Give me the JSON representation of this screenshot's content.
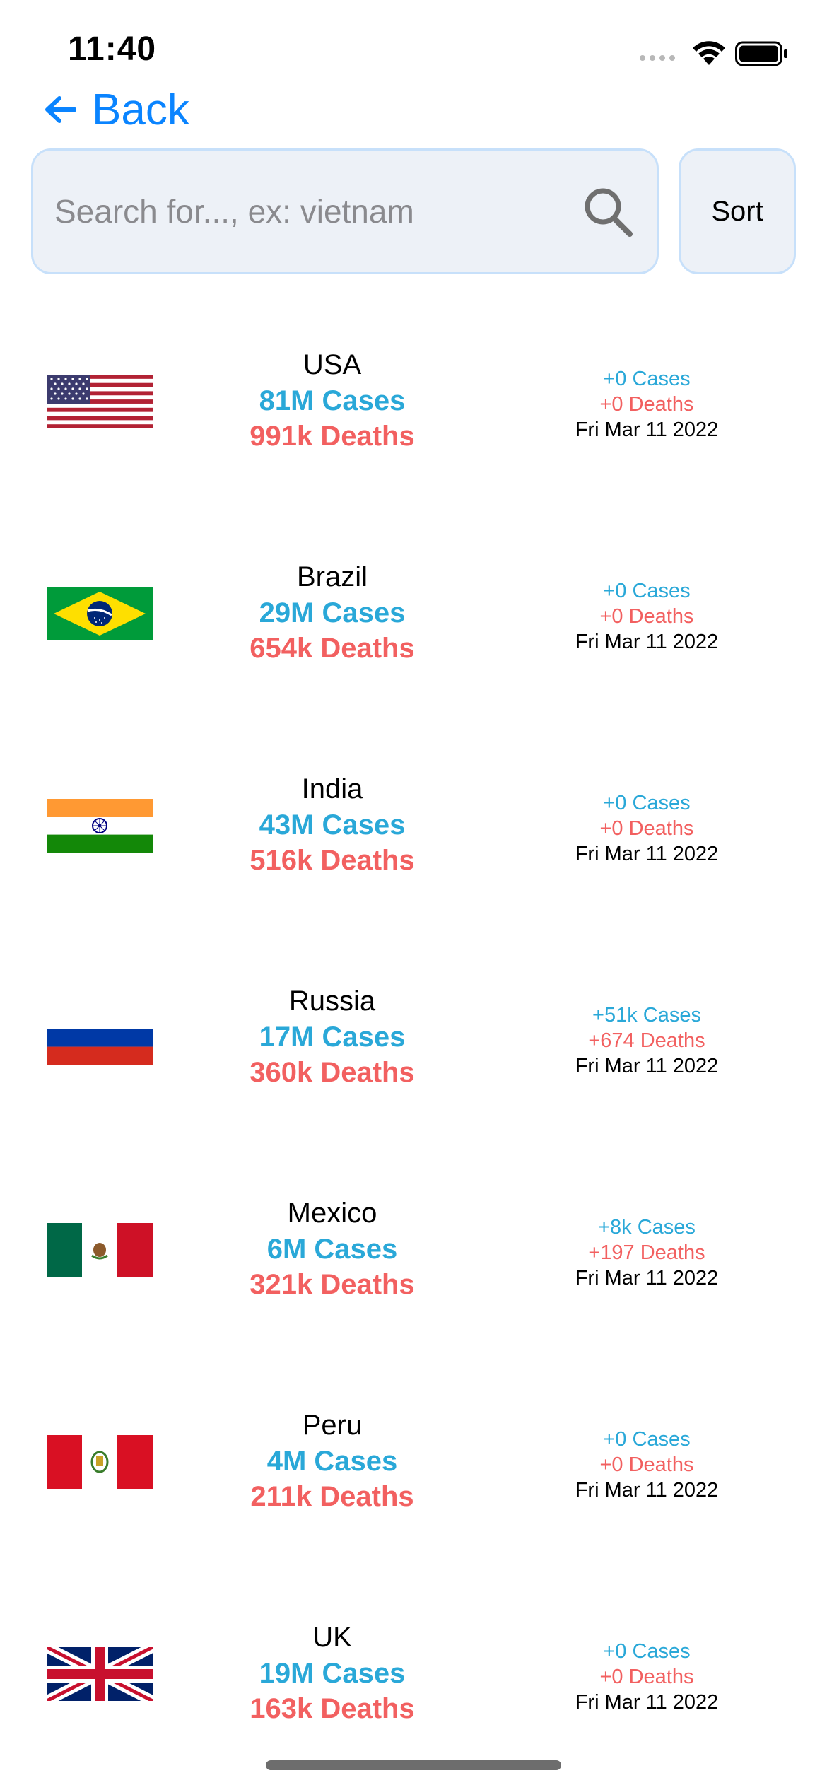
{
  "status_bar": {
    "time": "11:40"
  },
  "nav": {
    "back_label": "Back"
  },
  "search": {
    "placeholder": "Search for..., ex: vietnam",
    "value": ""
  },
  "sort_label": "Sort",
  "colors": {
    "accent": "#0a84ff",
    "cases": "#2aa8d8",
    "deaths": "#f26060",
    "field_bg": "#edf1f7",
    "field_border": "#c7e0fa"
  },
  "countries": [
    {
      "name": "USA",
      "cases": "81M Cases",
      "deaths": "991k Deaths",
      "new_cases": "+0 Cases",
      "new_deaths": "+0 Deaths",
      "date": "Fri Mar 11 2022",
      "flag": "usa-flag"
    },
    {
      "name": "Brazil",
      "cases": "29M Cases",
      "deaths": "654k Deaths",
      "new_cases": "+0 Cases",
      "new_deaths": "+0 Deaths",
      "date": "Fri Mar 11 2022",
      "flag": "brazil-flag"
    },
    {
      "name": "India",
      "cases": "43M Cases",
      "deaths": "516k Deaths",
      "new_cases": "+0 Cases",
      "new_deaths": "+0 Deaths",
      "date": "Fri Mar 11 2022",
      "flag": "india-flag"
    },
    {
      "name": "Russia",
      "cases": "17M Cases",
      "deaths": "360k Deaths",
      "new_cases": "+51k Cases",
      "new_deaths": "+674 Deaths",
      "date": "Fri Mar 11 2022",
      "flag": "russia-flag"
    },
    {
      "name": "Mexico",
      "cases": "6M Cases",
      "deaths": "321k Deaths",
      "new_cases": "+8k Cases",
      "new_deaths": "+197 Deaths",
      "date": "Fri Mar 11 2022",
      "flag": "mexico-flag"
    },
    {
      "name": "Peru",
      "cases": "4M Cases",
      "deaths": "211k Deaths",
      "new_cases": "+0 Cases",
      "new_deaths": "+0 Deaths",
      "date": "Fri Mar 11 2022",
      "flag": "peru-flag"
    },
    {
      "name": "UK",
      "cases": "19M Cases",
      "deaths": "163k Deaths",
      "new_cases": "+0 Cases",
      "new_deaths": "+0 Deaths",
      "date": "Fri Mar 11 2022",
      "flag": "uk-flag"
    }
  ]
}
